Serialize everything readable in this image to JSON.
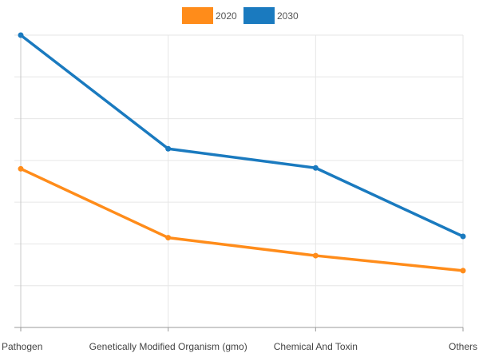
{
  "chart_data": {
    "type": "line",
    "categories": [
      "Pathogen",
      "Genetically Modified Organism (gmo)",
      "Chemical And Toxin",
      "Others"
    ],
    "series": [
      {
        "name": "2020",
        "values": [
          3.8,
          2.15,
          1.72,
          1.36
        ],
        "color": "#ff8c1a"
      },
      {
        "name": "2030",
        "values": [
          7.0,
          4.28,
          3.82,
          2.18
        ],
        "color": "#1a7abf"
      }
    ],
    "ylim": [
      0,
      7
    ],
    "grid": true,
    "legend_position": "top-center"
  }
}
